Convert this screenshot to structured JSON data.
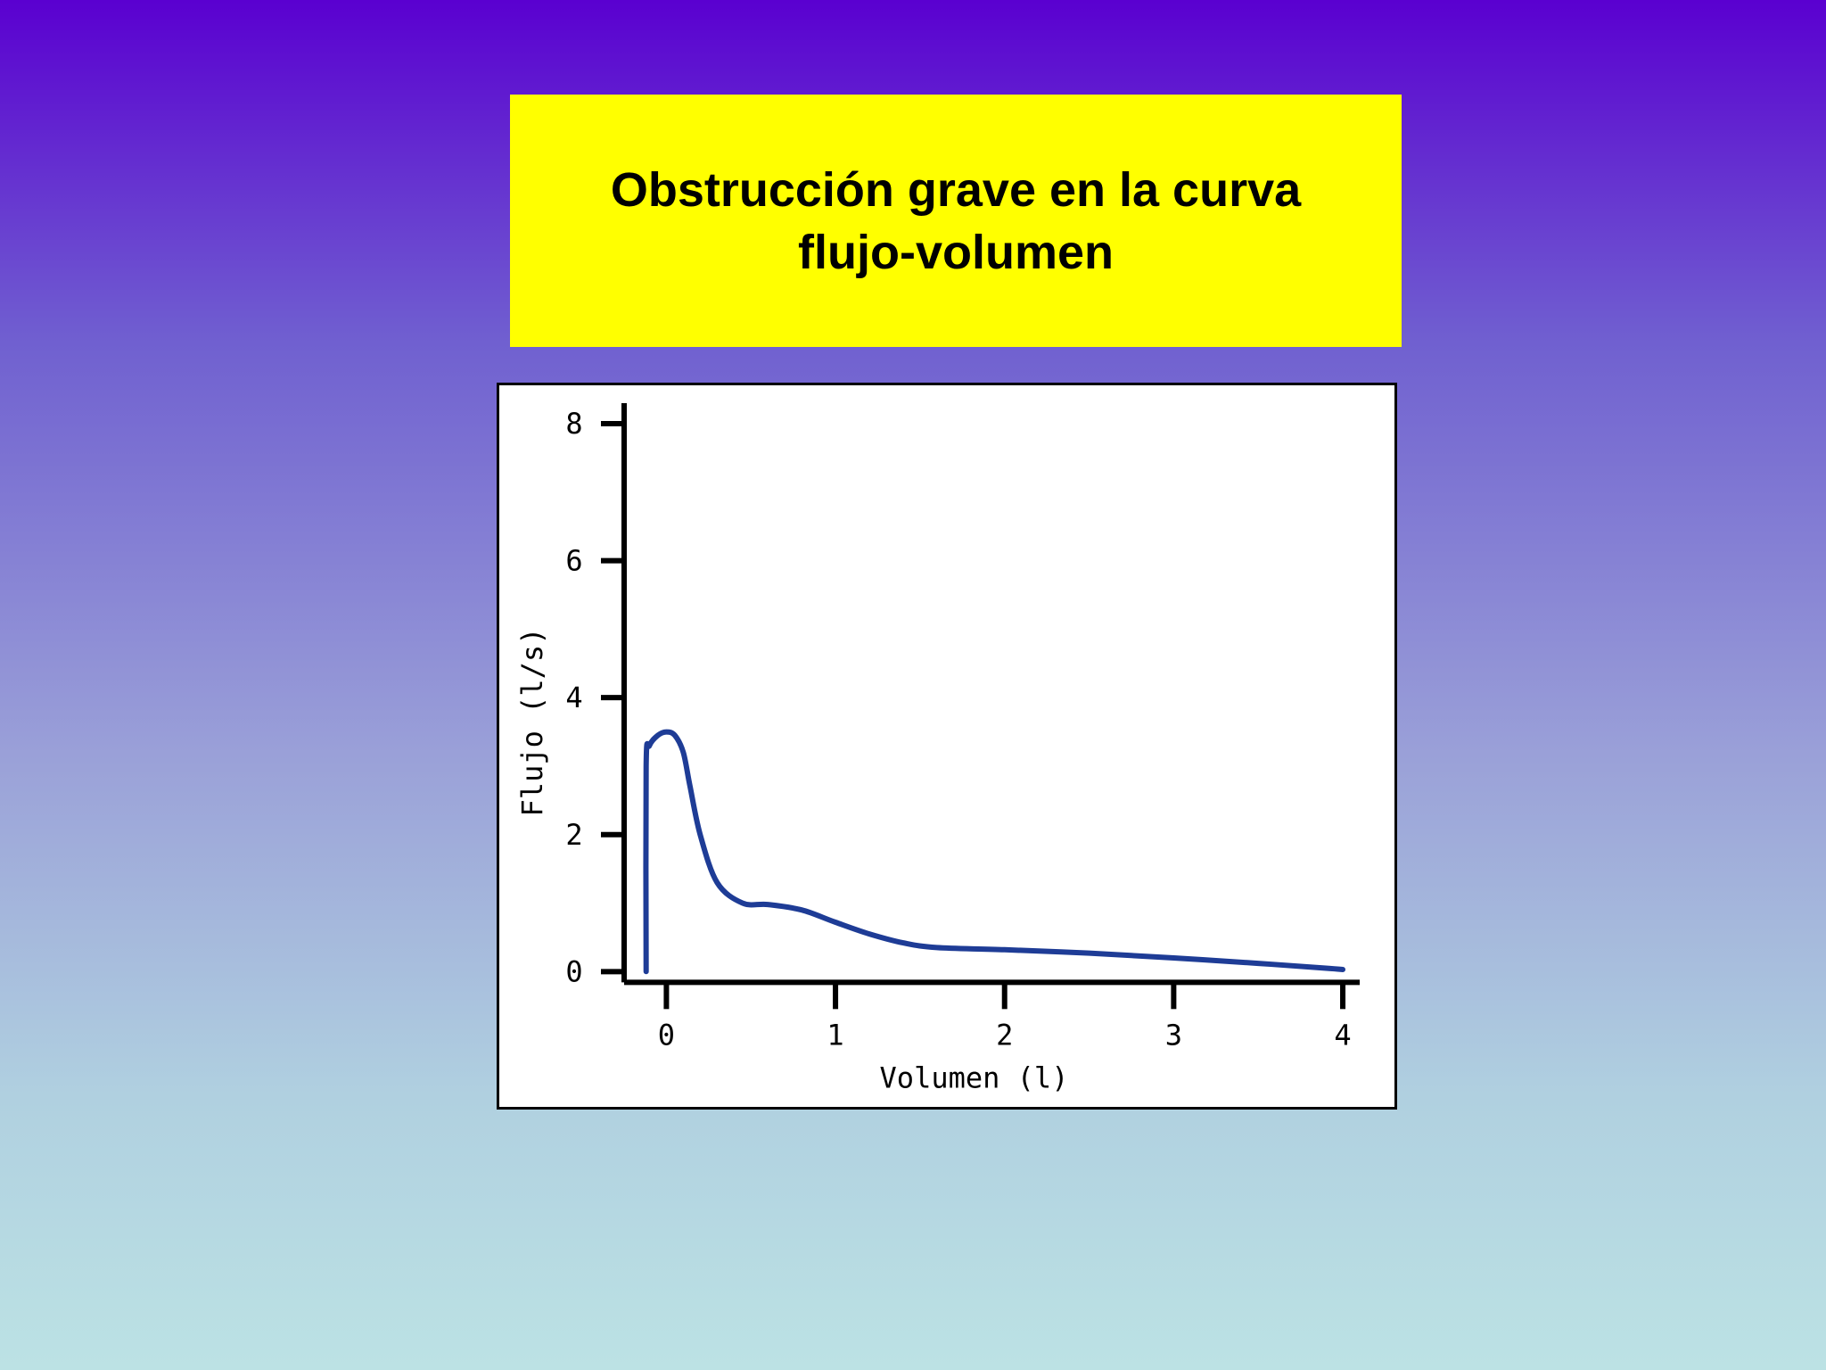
{
  "slide": {
    "title_line1": "Obstrucción grave en la curva",
    "title_line2": "flujo-volumen"
  },
  "colors": {
    "title_background": "#ffff00",
    "curve": "#1e3c96",
    "axes": "#000000"
  },
  "chart_data": {
    "type": "line",
    "xlabel": "Volumen (l)",
    "ylabel": "Flujo (l/s)",
    "xlim": [
      -0.25,
      4.1
    ],
    "ylim": [
      -0.1,
      8.3
    ],
    "xticks": [
      "0",
      "1",
      "2",
      "3",
      "4"
    ],
    "yticks": [
      "0",
      "2",
      "4",
      "6",
      "8"
    ],
    "grid": false,
    "series": [
      {
        "x": [
          -0.12,
          -0.12,
          -0.1,
          -0.05,
          0.0,
          0.05,
          0.1,
          0.14,
          0.2,
          0.3,
          0.45,
          0.6,
          0.8,
          1.0,
          1.2,
          1.4,
          1.6,
          2.0,
          2.5,
          3.0,
          3.5,
          3.9,
          4.0
        ],
        "y": [
          0.0,
          3.0,
          3.3,
          3.45,
          3.5,
          3.45,
          3.2,
          2.7,
          2.0,
          1.3,
          1.0,
          0.98,
          0.9,
          0.72,
          0.55,
          0.42,
          0.35,
          0.32,
          0.27,
          0.2,
          0.12,
          0.05,
          0.03
        ]
      }
    ]
  }
}
